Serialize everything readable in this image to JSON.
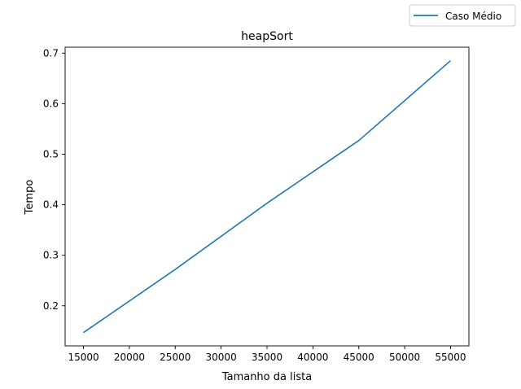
{
  "chart_data": {
    "type": "line",
    "title": "heapSort",
    "xlabel": "Tamanho da lista",
    "ylabel": "Tempo",
    "x": [
      15000,
      25000,
      35000,
      45000,
      55000
    ],
    "xticks": [
      15000,
      20000,
      25000,
      30000,
      35000,
      40000,
      45000,
      50000,
      55000
    ],
    "yticks": [
      0.2,
      0.3,
      0.4,
      0.5,
      0.6,
      0.7
    ],
    "ytick_labels": [
      "0.2",
      "0.3",
      "0.4",
      "0.5",
      "0.6",
      "0.7"
    ],
    "xlim": [
      13000,
      57000
    ],
    "ylim": [
      0.1207,
      0.7117
    ],
    "grid": false,
    "legend_position": "top-right (outside axes)",
    "series": [
      {
        "name": "Caso Médio",
        "color": "#1f77b4",
        "values": [
          0.147,
          0.272,
          0.403,
          0.527,
          0.685
        ]
      }
    ]
  }
}
